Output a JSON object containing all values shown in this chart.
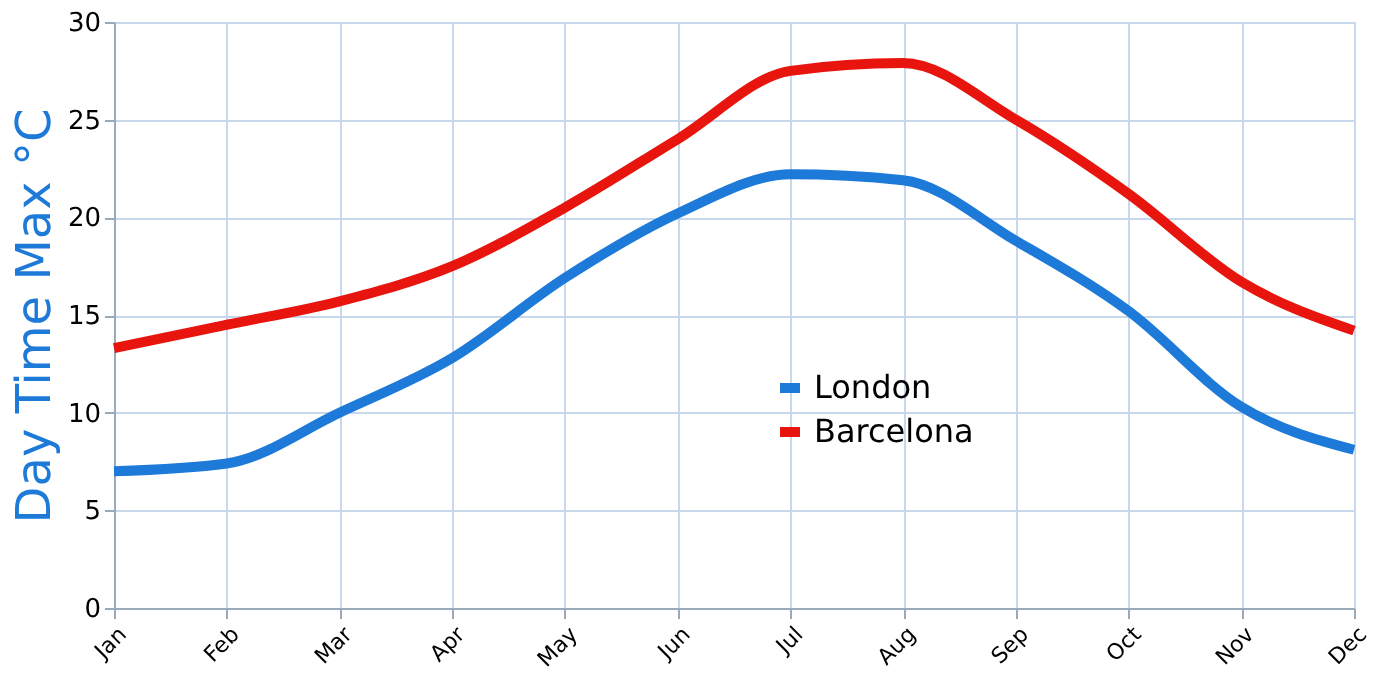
{
  "chart_data": {
    "type": "line",
    "ylabel": "Day Time Max °C",
    "categories": [
      "Jan",
      "Feb",
      "Mar",
      "Apr",
      "May",
      "Jun",
      "Jul",
      "Aug",
      "Sep",
      "Oct",
      "Nov",
      "Dec"
    ],
    "series": [
      {
        "name": "London",
        "color": "#1e7ad8",
        "values": [
          7.0,
          7.4,
          10.0,
          12.8,
          16.9,
          20.2,
          22.2,
          21.9,
          18.8,
          15.2,
          10.3,
          8.1
        ]
      },
      {
        "name": "Barcelona",
        "color": "#e8140e",
        "values": [
          13.3,
          14.5,
          15.7,
          17.5,
          20.5,
          24.0,
          27.5,
          27.9,
          25.0,
          21.2,
          16.7,
          14.2
        ]
      }
    ],
    "ylim": [
      0,
      30
    ],
    "yticks": [
      0,
      5,
      10,
      15,
      20,
      25,
      30
    ],
    "grid": true,
    "legend": "bottom right",
    "marker": "none",
    "line_style": "solid"
  }
}
